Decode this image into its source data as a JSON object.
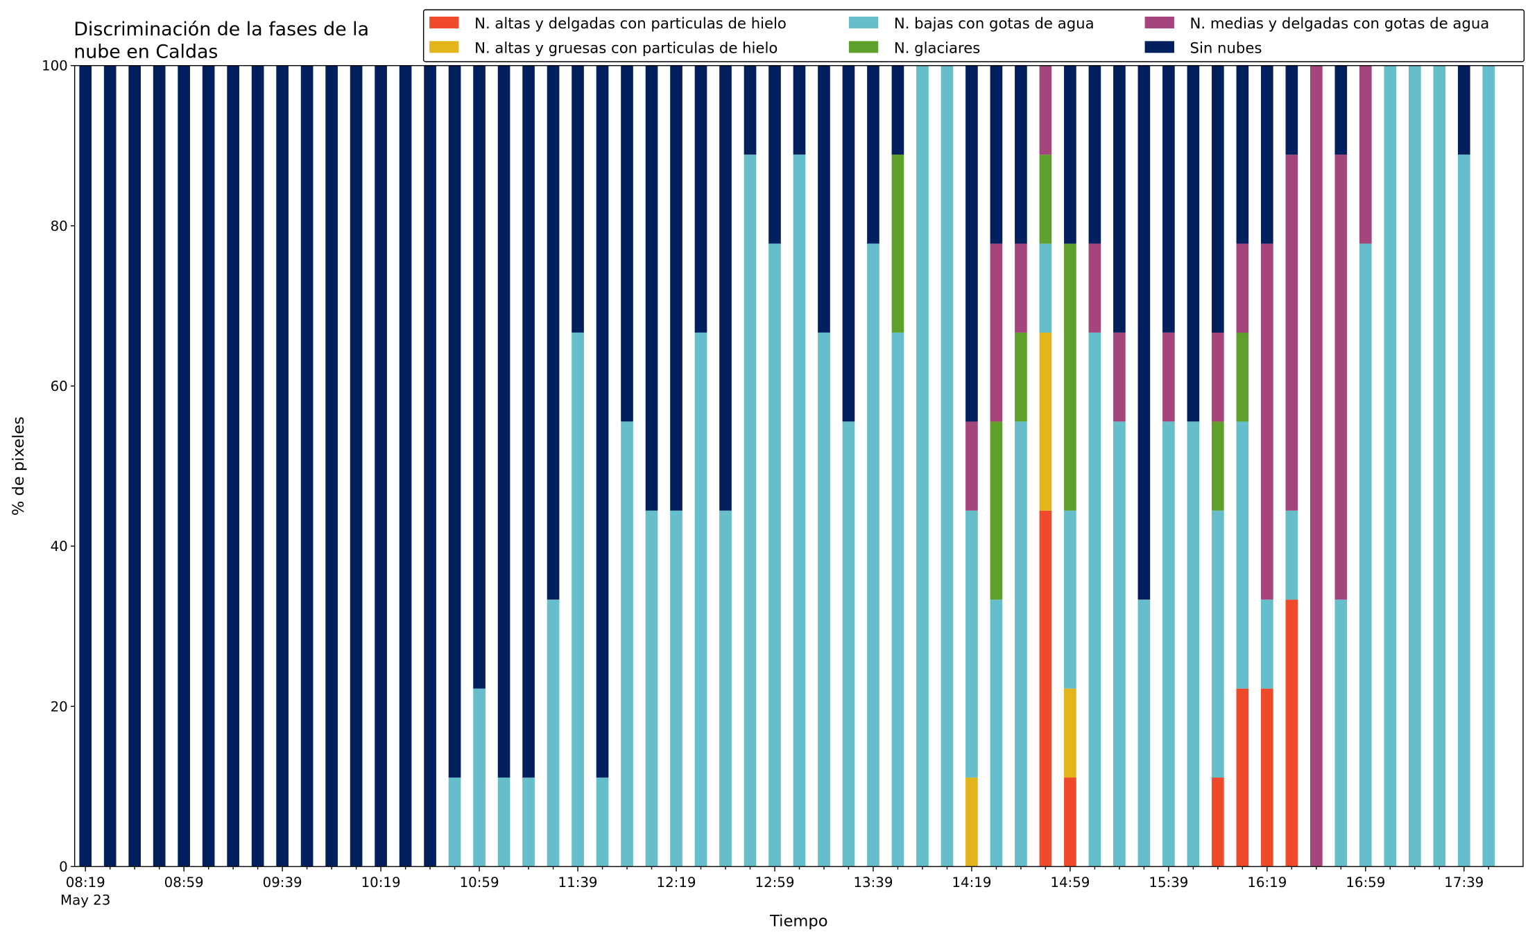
{
  "chart_data": {
    "type": "stacked_bar",
    "title": [
      "Discriminación de la fases de la",
      "nube en Caldas"
    ],
    "xlabel": "Tiempo",
    "ylabel": "% de pixeles",
    "categories": [
      "08:19",
      null,
      null,
      null,
      "08:59",
      null,
      null,
      null,
      "09:39",
      null,
      null,
      null,
      "10:19",
      null,
      null,
      null,
      "10:59",
      null,
      null,
      null,
      "11:39",
      null,
      null,
      null,
      "12:19",
      null,
      null,
      null,
      "12:59",
      null,
      null,
      null,
      "13:39",
      null,
      null,
      null,
      "14:19",
      null,
      null,
      null,
      "14:59",
      null,
      null,
      null,
      "15:39",
      null,
      null,
      null,
      "16:19",
      null,
      null,
      null,
      "16:59",
      null,
      null,
      null,
      "17:39",
      null
    ],
    "first_tick_sublabel": "May 23",
    "ylim": [
      0,
      100
    ],
    "yticks": [
      0,
      20,
      40,
      60,
      80,
      100
    ],
    "legend_position": "upper right",
    "series": [
      {
        "name": "N. altas y delgadas con particulas de hielo",
        "color": "#ef4a2c",
        "values": [
          0,
          0,
          0,
          0,
          0,
          0,
          0,
          0,
          0,
          0,
          0,
          0,
          0,
          0,
          0,
          0,
          0,
          0,
          0,
          0,
          0,
          0,
          0,
          0,
          0,
          0,
          0,
          0,
          0,
          0,
          0,
          0,
          0,
          0,
          0,
          0,
          0,
          0,
          0,
          44.44,
          11.11,
          0,
          0,
          0,
          0,
          0,
          11.11,
          22.22,
          22.22,
          33.33,
          0,
          0,
          0,
          0,
          0,
          0,
          0,
          0
        ]
      },
      {
        "name": "N. altas y gruesas con particulas de hielo",
        "color": "#e4b41b",
        "values": [
          0,
          0,
          0,
          0,
          0,
          0,
          0,
          0,
          0,
          0,
          0,
          0,
          0,
          0,
          0,
          0,
          0,
          0,
          0,
          0,
          0,
          0,
          0,
          0,
          0,
          0,
          0,
          0,
          0,
          0,
          0,
          0,
          0,
          0,
          0,
          0,
          11.11,
          0,
          0,
          22.22,
          11.11,
          0,
          0,
          0,
          0,
          0,
          0,
          0,
          0,
          0,
          0,
          0,
          0,
          0,
          0,
          0,
          0,
          0
        ]
      },
      {
        "name": "N. bajas con gotas de agua",
        "color": "#65bec9",
        "values": [
          0,
          0,
          0,
          0,
          0,
          0,
          0,
          0,
          0,
          0,
          0,
          0,
          0,
          0,
          0,
          11.11,
          22.22,
          11.11,
          11.11,
          33.33,
          66.67,
          11.11,
          55.56,
          44.44,
          44.44,
          66.67,
          44.44,
          88.89,
          77.78,
          88.89,
          66.67,
          55.56,
          77.78,
          66.67,
          100,
          100,
          33.33,
          33.33,
          55.56,
          11.11,
          22.22,
          66.67,
          55.56,
          33.33,
          55.56,
          55.56,
          33.33,
          33.33,
          11.11,
          11.11,
          0,
          33.33,
          77.78,
          100,
          100,
          100,
          88.89,
          100
        ]
      },
      {
        "name": "N. glaciares",
        "color": "#5f9f2c",
        "values": [
          0,
          0,
          0,
          0,
          0,
          0,
          0,
          0,
          0,
          0,
          0,
          0,
          0,
          0,
          0,
          0,
          0,
          0,
          0,
          0,
          0,
          0,
          0,
          0,
          0,
          0,
          0,
          0,
          0,
          0,
          0,
          0,
          0,
          22.22,
          0,
          0,
          0,
          22.22,
          11.11,
          11.11,
          33.33,
          0,
          0,
          0,
          0,
          0,
          11.11,
          11.11,
          0,
          0,
          0,
          0,
          0,
          0,
          0,
          0,
          0,
          0
        ]
      },
      {
        "name": "N. medias y delgadas con gotas de agua",
        "color": "#a4457b",
        "values": [
          0,
          0,
          0,
          0,
          0,
          0,
          0,
          0,
          0,
          0,
          0,
          0,
          0,
          0,
          0,
          0,
          0,
          0,
          0,
          0,
          0,
          0,
          0,
          0,
          0,
          0,
          0,
          0,
          0,
          0,
          0,
          0,
          0,
          0,
          0,
          0,
          11.11,
          22.22,
          11.11,
          11.11,
          0,
          11.11,
          11.11,
          0,
          11.11,
          0,
          11.11,
          11.11,
          44.44,
          44.44,
          100,
          55.56,
          22.22,
          0,
          0,
          0,
          0,
          0
        ]
      },
      {
        "name": "Sin nubes",
        "color": "#03205e",
        "values": [
          100,
          100,
          100,
          100,
          100,
          100,
          100,
          100,
          100,
          100,
          100,
          100,
          100,
          100,
          100,
          88.89,
          77.78,
          88.89,
          88.89,
          66.67,
          33.33,
          88.89,
          44.44,
          55.56,
          55.56,
          33.33,
          55.56,
          11.11,
          22.22,
          11.11,
          33.33,
          44.44,
          22.22,
          11.11,
          0,
          0,
          44.44,
          22.22,
          22.22,
          0,
          22.22,
          22.22,
          33.33,
          66.67,
          33.33,
          44.44,
          33.33,
          22.22,
          22.22,
          11.11,
          0,
          11.11,
          0,
          0,
          0,
          0,
          11.11,
          0
        ]
      }
    ]
  }
}
